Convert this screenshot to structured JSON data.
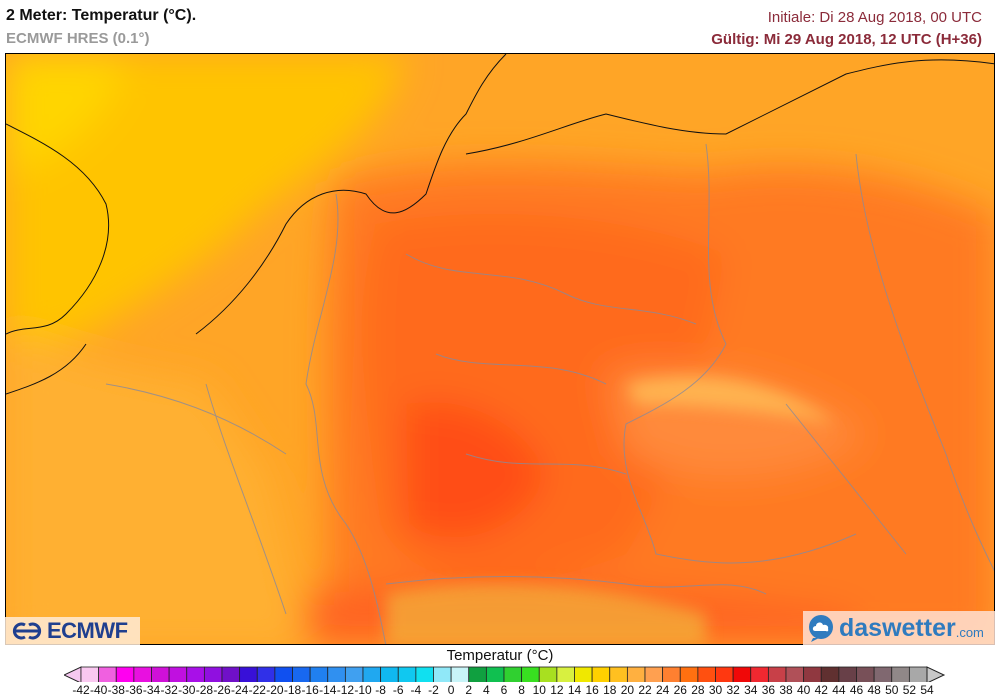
{
  "header": {
    "title": "2 Meter: Temperatur (°C).",
    "model": "ECMWF HRES (0.1°)",
    "initial": "Initiale: Di 28 Aug 2018, 00 UTC",
    "valid": "Gültig: Mi 29 Aug 2018, 12 UTC (H+36)"
  },
  "logos": {
    "ecmwf": "ECMWF",
    "daswetter": "daswetter",
    "daswetter_suffix": ".com"
  },
  "legend": {
    "title": "Temperatur (°C)",
    "labels": [
      "-42",
      "-40",
      "-38",
      "-36",
      "-34",
      "-32",
      "-30",
      "-28",
      "-26",
      "-24",
      "-22",
      "-20",
      "-18",
      "-16",
      "-14",
      "-12",
      "-10",
      "-8",
      "-6",
      "-4",
      "-2",
      "0",
      "2",
      "4",
      "6",
      "8",
      "10",
      "12",
      "14",
      "16",
      "18",
      "20",
      "22",
      "24",
      "26",
      "28",
      "30",
      "32",
      "34",
      "36",
      "38",
      "40",
      "42",
      "44",
      "46",
      "48",
      "50",
      "52",
      "54"
    ],
    "under_color": "#f6c8f0",
    "over_color": "#c8c8c8",
    "colors": [
      "#f9c8f0",
      "#f060e0",
      "#ff00f0",
      "#e810e0",
      "#d010d8",
      "#c010e0",
      "#a810e8",
      "#9010e0",
      "#7010c8",
      "#3810d8",
      "#3030e8",
      "#1050f0",
      "#1868f0",
      "#2080f0",
      "#3090f0",
      "#40a0f0",
      "#20a8f0",
      "#10b8f0",
      "#10c8f0",
      "#10e0f0",
      "#90e8f8",
      "#c8f4f8",
      "#10a040",
      "#10c050",
      "#30d030",
      "#38e020",
      "#a8e020",
      "#d8f040",
      "#f0e800",
      "#ffd000",
      "#ffc020",
      "#ffb040",
      "#ffa050",
      "#ff8030",
      "#ff7010",
      "#ff5010",
      "#ff3810",
      "#f00808",
      "#f02830",
      "#c84048",
      "#b05058",
      "#903840",
      "#603030",
      "#684048",
      "#785058",
      "#806870",
      "#908888",
      "#a8a8a8"
    ]
  }
}
